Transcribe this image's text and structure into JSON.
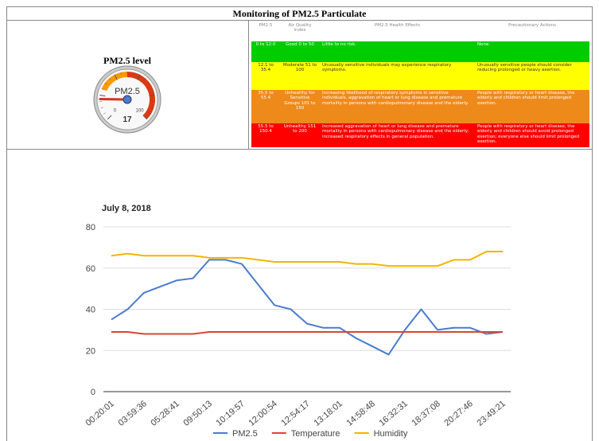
{
  "header": {
    "title": "Monitoring of PM2.5 Particulate"
  },
  "gauge": {
    "title": "PM2.5 level",
    "label": "PM2.5",
    "value": 17,
    "min": 0,
    "max": 100,
    "bands": [
      {
        "from": 25,
        "to": 50,
        "color": "#ff9900"
      },
      {
        "from": 50,
        "to": 100,
        "color": "#dc3912"
      }
    ]
  },
  "table": {
    "headers": [
      "PM2.5",
      "Air Quality Index",
      "PM2.5 Health Effects",
      "Precautionary Actions"
    ],
    "rows": [
      {
        "color": "#00cc00",
        "text_color": "#ffffff",
        "cells": [
          "0 to 12.0",
          "Good 0 to 50",
          "Little to no risk.",
          "None."
        ]
      },
      {
        "color": "#ffff00",
        "text_color": "#333333",
        "cells": [
          "12.1 to 35.4",
          "Moderate 51 to 100",
          "Unusually sensitive individuals may experience respiratory symptoms.",
          "Unusually sensitive people should consider reducing prolonged or heavy exertion."
        ]
      },
      {
        "color": "#ee8a1a",
        "text_color": "#ffffff",
        "cells": [
          "35.5 to 55.4",
          "Unhealthy for Sensitive Groups 101 to 150",
          "Increasing likelihood of respiratory symptoms in sensitive individuals, aggravation of heart or lung disease and premature mortality in persons with cardiopulmonary disease and the elderly.",
          "People with respiratory or heart disease, the elderly and children should limit prolonged exertion."
        ]
      },
      {
        "color": "#ff0000",
        "text_color": "#ffffff",
        "cells": [
          "55.5 to 150.4",
          "Unhealthy 151 to 200",
          "Increased aggravation of heart or lung disease and premature mortality in persons with cardiopulmonary disease and the elderly; increased respiratory effects in general population.",
          "People with respiratory or heart disease, the elderly and children should avoid prolonged exertion; everyone else should limit prolonged exertion."
        ]
      }
    ]
  },
  "chart_data": {
    "type": "line",
    "title": "July 8, 2018",
    "categories": [
      "00:20:01",
      null,
      "03:59:36",
      null,
      "05:28:41",
      null,
      "09:50:13",
      null,
      "10:19:57",
      null,
      "12:00:54",
      null,
      "12:54:17",
      null,
      "13:18:01",
      null,
      "14:58:48",
      null,
      "16:32:31",
      null,
      "18:37:08",
      null,
      "20:27:46",
      null,
      "23:49:21"
    ],
    "series": [
      {
        "name": "PM2.5",
        "color": "#4a7bd0",
        "values": [
          35,
          40,
          48,
          51,
          54,
          55,
          64,
          64,
          62,
          52,
          42,
          40,
          33,
          31,
          31,
          26,
          22,
          18,
          30,
          40,
          30,
          31,
          31,
          28,
          29
        ]
      },
      {
        "name": "Temperature",
        "color": "#db4437",
        "values": [
          29,
          29,
          28,
          28,
          28,
          28,
          29,
          29,
          29,
          29,
          29,
          29,
          29,
          29,
          29,
          29,
          29,
          29,
          29,
          29,
          29,
          29,
          29,
          29,
          29
        ]
      },
      {
        "name": "Humidity",
        "color": "#f4b400",
        "values": [
          66,
          67,
          66,
          66,
          66,
          66,
          65,
          65,
          65,
          64,
          63,
          63,
          63,
          63,
          63,
          62,
          62,
          61,
          61,
          61,
          61,
          64,
          64,
          68,
          68
        ]
      }
    ],
    "ylim": [
      0,
      80
    ],
    "yticks": [
      0,
      20,
      40,
      60,
      80
    ],
    "grid": true,
    "legend": "bottom"
  }
}
